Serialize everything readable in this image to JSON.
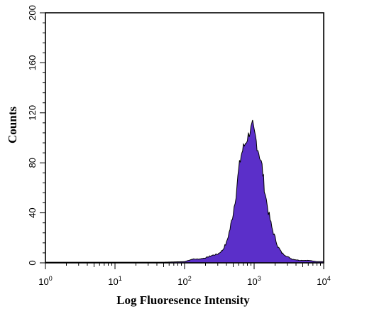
{
  "chart_data": {
    "type": "area",
    "title": "",
    "xlabel": "Log Fluoresence Intensity",
    "ylabel": "Counts",
    "x_scale": "log",
    "xlim": [
      1,
      10000
    ],
    "ylim": [
      0,
      200
    ],
    "x_ticks": [
      {
        "value": 1,
        "base": "10",
        "exp": "0"
      },
      {
        "value": 10,
        "base": "10",
        "exp": "1"
      },
      {
        "value": 100,
        "base": "10",
        "exp": "2"
      },
      {
        "value": 1000,
        "base": "10",
        "exp": "3"
      },
      {
        "value": 10000,
        "base": "10",
        "exp": "4"
      }
    ],
    "y_ticks": [
      "0",
      "40",
      "80",
      "120",
      "160",
      "200"
    ],
    "grid": false,
    "legend": "none",
    "fill_color": "#5b2fc9",
    "line_color": "#000000",
    "series": [
      {
        "points": [
          [
            1,
            0.5
          ],
          [
            2,
            0.5
          ],
          [
            5,
            0.5
          ],
          [
            10,
            0.5
          ],
          [
            20,
            0.5
          ],
          [
            50,
            0.5
          ],
          [
            100,
            1
          ],
          [
            130,
            3
          ],
          [
            160,
            3
          ],
          [
            200,
            4
          ],
          [
            250,
            6
          ],
          [
            300,
            7
          ],
          [
            350,
            10
          ],
          [
            400,
            16
          ],
          [
            450,
            27
          ],
          [
            500,
            40
          ],
          [
            550,
            56
          ],
          [
            600,
            74
          ],
          [
            650,
            86
          ],
          [
            700,
            92
          ],
          [
            750,
            96
          ],
          [
            800,
            100
          ],
          [
            850,
            104
          ],
          [
            900,
            107
          ],
          [
            950,
            110
          ],
          [
            1000,
            104
          ],
          [
            1050,
            100
          ],
          [
            1100,
            94
          ],
          [
            1200,
            86
          ],
          [
            1300,
            77
          ],
          [
            1400,
            61
          ],
          [
            1500,
            50
          ],
          [
            1600,
            41
          ],
          [
            1800,
            28
          ],
          [
            2000,
            20
          ],
          [
            2200,
            13
          ],
          [
            2500,
            8
          ],
          [
            3000,
            5
          ],
          [
            3500,
            3
          ],
          [
            4500,
            2
          ],
          [
            6000,
            2
          ],
          [
            8000,
            1
          ],
          [
            10000,
            1
          ]
        ]
      }
    ]
  }
}
